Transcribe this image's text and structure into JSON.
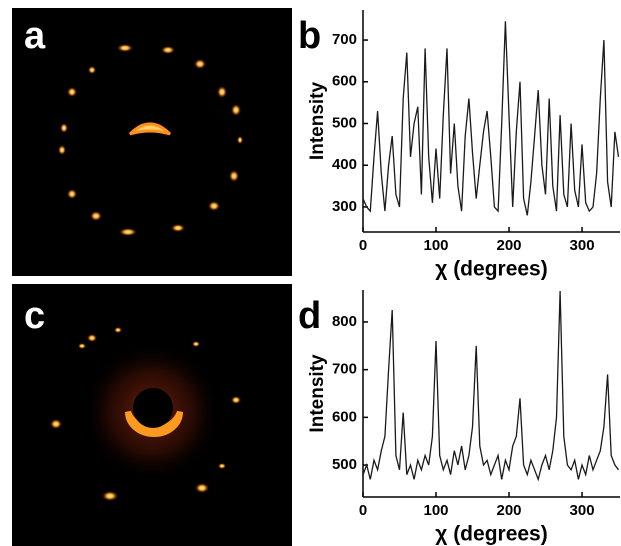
{
  "chart_data": [
    {
      "type": "image",
      "label": "a"
    },
    {
      "type": "line",
      "label": "b",
      "ylabel": "Intensity",
      "xlabel": "χ (degrees)",
      "color": "#1a1a1a",
      "xlim": [
        0,
        352
      ],
      "ylim": [
        240,
        772
      ],
      "xticks": [
        0,
        100,
        200,
        300
      ],
      "yticks": [
        300,
        400,
        500,
        600,
        700
      ],
      "x": [
        0,
        5,
        10,
        15,
        20,
        25,
        30,
        35,
        40,
        45,
        50,
        55,
        60,
        65,
        70,
        75,
        80,
        85,
        90,
        95,
        100,
        105,
        110,
        115,
        120,
        125,
        130,
        135,
        140,
        145,
        150,
        155,
        160,
        165,
        170,
        175,
        180,
        185,
        190,
        195,
        200,
        205,
        210,
        215,
        220,
        225,
        230,
        235,
        240,
        245,
        250,
        255,
        260,
        265,
        270,
        275,
        280,
        285,
        290,
        295,
        300,
        305,
        310,
        315,
        320,
        325,
        330,
        335,
        340,
        345,
        350
      ],
      "values": [
        320,
        300,
        290,
        420,
        530,
        380,
        290,
        400,
        470,
        330,
        300,
        560,
        670,
        420,
        500,
        540,
        330,
        680,
        420,
        310,
        440,
        320,
        520,
        680,
        380,
        500,
        350,
        290,
        470,
        560,
        430,
        320,
        400,
        480,
        530,
        420,
        300,
        290,
        500,
        745,
        520,
        300,
        480,
        600,
        320,
        280,
        360,
        470,
        580,
        400,
        330,
        560,
        350,
        290,
        520,
        330,
        300,
        500,
        340,
        300,
        450,
        310,
        290,
        300,
        380,
        560,
        700,
        360,
        300,
        480,
        420
      ]
    },
    {
      "type": "image",
      "label": "c"
    },
    {
      "type": "line",
      "label": "d",
      "ylabel": "Intensity",
      "xlabel": "χ (degrees)",
      "color": "#1a1a1a",
      "xlim": [
        0,
        352
      ],
      "ylim": [
        433,
        867
      ],
      "xticks": [
        0,
        100,
        200,
        300
      ],
      "yticks": [
        500,
        600,
        700,
        800
      ],
      "x": [
        0,
        5,
        10,
        15,
        20,
        25,
        30,
        35,
        40,
        45,
        50,
        55,
        60,
        65,
        70,
        75,
        80,
        85,
        90,
        95,
        100,
        105,
        110,
        115,
        120,
        125,
        130,
        135,
        140,
        145,
        150,
        155,
        160,
        165,
        170,
        175,
        180,
        185,
        190,
        195,
        200,
        205,
        210,
        215,
        220,
        225,
        230,
        235,
        240,
        245,
        250,
        255,
        260,
        265,
        270,
        275,
        280,
        285,
        290,
        295,
        300,
        305,
        310,
        315,
        320,
        325,
        330,
        335,
        340,
        345,
        350
      ],
      "values": [
        480,
        500,
        470,
        510,
        490,
        530,
        560,
        700,
        825,
        520,
        490,
        610,
        480,
        500,
        470,
        510,
        490,
        520,
        500,
        560,
        760,
        520,
        490,
        510,
        480,
        530,
        500,
        540,
        490,
        520,
        580,
        750,
        540,
        500,
        510,
        480,
        500,
        520,
        470,
        510,
        490,
        540,
        560,
        640,
        500,
        480,
        510,
        490,
        470,
        500,
        520,
        490,
        530,
        600,
        865,
        560,
        500,
        490,
        510,
        470,
        500,
        480,
        520,
        490,
        510,
        530,
        580,
        690,
        520,
        500,
        490
      ]
    }
  ]
}
